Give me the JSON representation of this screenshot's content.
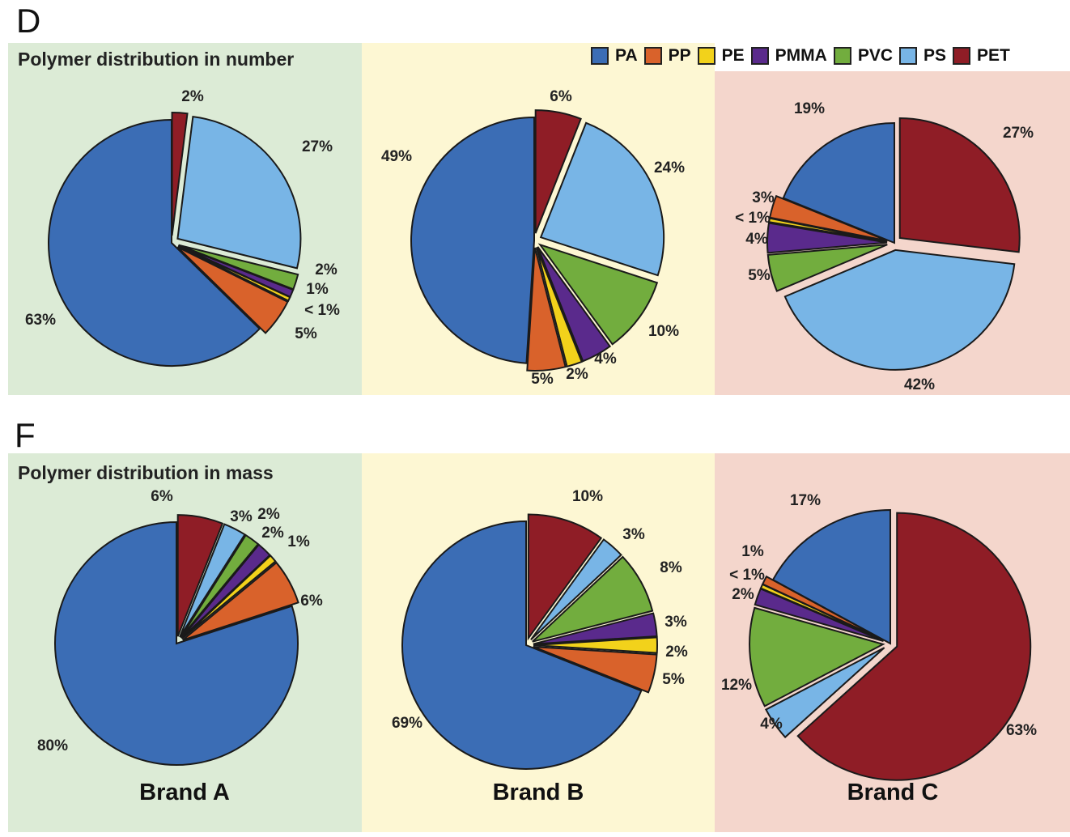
{
  "figure": {
    "label_top": "D",
    "label_bottom": "F",
    "title_number": "Polymer distribution in number",
    "title_mass": "Polymer distribution in mass",
    "brands": [
      "Brand A",
      "Brand B",
      "Brand C"
    ]
  },
  "colors": {
    "PA": "#3b6db5",
    "PP": "#d9622b",
    "PE": "#f2d21b",
    "PMMA": "#5a2a8c",
    "PVC": "#72ad3e",
    "PS": "#78b5e6",
    "PET": "#8f1d26"
  },
  "legend": [
    "PA",
    "PP",
    "PE",
    "PMMA",
    "PVC",
    "PS",
    "PET"
  ],
  "chart_data": [
    {
      "type": "pie",
      "title": "Polymer distribution in number",
      "brand": "Brand A",
      "order": [
        "PET",
        "PS",
        "PVC",
        "PMMA",
        "PE",
        "PP",
        "PA"
      ],
      "values": [
        2,
        27,
        2,
        1,
        0.5,
        5,
        63
      ],
      "labels": [
        "2%",
        "27%",
        "2%",
        "1%",
        "< 1%",
        "5%",
        "63%"
      ]
    },
    {
      "type": "pie",
      "title": "Polymer distribution in number",
      "brand": "Brand B",
      "order": [
        "PET",
        "PS",
        "PVC",
        "PMMA",
        "PE",
        "PP",
        "PA"
      ],
      "values": [
        6,
        24,
        10,
        4,
        2,
        5,
        49
      ],
      "labels": [
        "6%",
        "24%",
        "10%",
        "4%",
        "2%",
        "5%",
        "49%"
      ]
    },
    {
      "type": "pie",
      "title": "Polymer distribution in number",
      "brand": "Brand C",
      "order": [
        "PET",
        "PS",
        "PVC",
        "PMMA",
        "PE",
        "PP",
        "PA"
      ],
      "values": [
        27,
        42,
        5,
        4,
        0.5,
        3,
        19
      ],
      "labels": [
        "27%",
        "42%",
        "5%",
        "4%",
        "< 1%",
        "3%",
        "19%"
      ]
    },
    {
      "type": "pie",
      "title": "Polymer distribution in mass",
      "brand": "Brand A",
      "order": [
        "PET",
        "PS",
        "PVC",
        "PMMA",
        "PE",
        "PP",
        "PA"
      ],
      "values": [
        6,
        3,
        2,
        2,
        1,
        6,
        80
      ],
      "labels": [
        "6%",
        "3%",
        "2%",
        "2%",
        "1%",
        "6%",
        "80%"
      ]
    },
    {
      "type": "pie",
      "title": "Polymer distribution in mass",
      "brand": "Brand B",
      "order": [
        "PET",
        "PS",
        "PVC",
        "PMMA",
        "PE",
        "PP",
        "PA"
      ],
      "values": [
        10,
        3,
        8,
        3,
        2,
        5,
        69
      ],
      "labels": [
        "10%",
        "3%",
        "8%",
        "3%",
        "2%",
        "5%",
        "69%"
      ]
    },
    {
      "type": "pie",
      "title": "Polymer distribution in mass",
      "brand": "Brand C",
      "order": [
        "PET",
        "PS",
        "PVC",
        "PMMA",
        "PE",
        "PP",
        "PA"
      ],
      "values": [
        63,
        4,
        12,
        2,
        0.5,
        1,
        17
      ],
      "labels": [
        "63%",
        "4%",
        "12%",
        "2%",
        "< 1%",
        "1%",
        "17%"
      ]
    }
  ]
}
